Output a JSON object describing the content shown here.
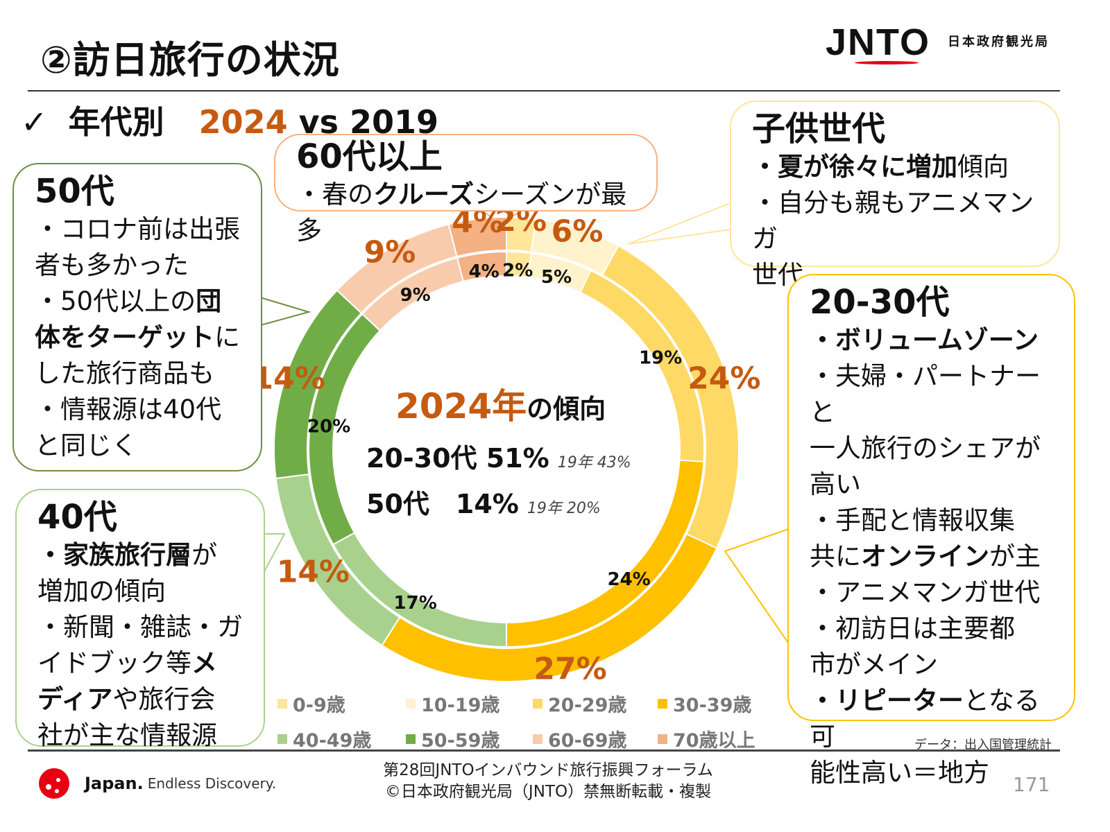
{
  "header": {
    "title": "②訪日旅行の状況",
    "logo": "JNTO",
    "logo_sub": "日本政府観光局"
  },
  "subtitle": {
    "check": "✓",
    "label": "年代別",
    "year_new": "2024",
    "vs": "vs 2019"
  },
  "callouts": {
    "c50": {
      "title": "50代",
      "lines": [
        [
          {
            "t": "・コロナ前は出張"
          }
        ],
        [
          {
            "t": "者も多かった"
          }
        ],
        [
          {
            "t": "・50代以上の"
          },
          {
            "t": "団",
            "b": true
          }
        ],
        [
          {
            "t": "体をターゲット",
            "b": true
          },
          {
            "t": "に"
          }
        ],
        [
          {
            "t": "した旅行商品も"
          }
        ],
        [
          {
            "t": "・情報源は40代"
          }
        ],
        [
          {
            "t": "と同じく"
          }
        ]
      ]
    },
    "c40": {
      "title": "40代",
      "lines": [
        [
          {
            "t": "・家族旅行層",
            "b": true
          },
          {
            "t": "が"
          }
        ],
        [
          {
            "t": "増加の傾向"
          }
        ],
        [
          {
            "t": "・新聞・雑誌・ガ"
          }
        ],
        [
          {
            "t": "イドブック等"
          },
          {
            "t": "メ",
            "b": true
          }
        ],
        [
          {
            "t": "ディア",
            "b": true
          },
          {
            "t": "や旅行会"
          }
        ],
        [
          {
            "t": "社が主な情報源"
          }
        ]
      ]
    },
    "c60": {
      "title": "60代以上",
      "lines": [
        [
          {
            "t": "・春の"
          },
          {
            "t": "クルーズ",
            "b": true
          },
          {
            "t": "シーズンが最多"
          }
        ]
      ]
    },
    "kids": {
      "title": "子供世代",
      "lines": [
        [
          {
            "t": "・夏が徐々に増加",
            "b": true
          },
          {
            "t": "傾向"
          }
        ],
        [
          {
            "t": "・自分も親もアニメマンガ"
          }
        ],
        [
          {
            "t": "世代"
          }
        ]
      ]
    },
    "c2030": {
      "title": "20-30代",
      "lines": [
        [
          {
            "t": "・ボリュームゾーン",
            "b": true
          }
        ],
        [
          {
            "t": "・夫婦・パートナーと"
          }
        ],
        [
          {
            "t": "一人旅行のシェアが"
          }
        ],
        [
          {
            "t": "高い"
          }
        ],
        [
          {
            "t": "・手配と情報収集"
          }
        ],
        [
          {
            "t": "共に"
          },
          {
            "t": "オンライン",
            "b": true
          },
          {
            "t": "が主"
          }
        ],
        [
          {
            "t": "・アニメマンガ世代"
          }
        ],
        [
          {
            "t": "・初訪日は主要都"
          }
        ],
        [
          {
            "t": "市がメイン"
          }
        ],
        [
          {
            "t": "・リピーター",
            "b": true
          },
          {
            "t": "となる可"
          }
        ],
        [
          {
            "t": "能性高い＝地方"
          }
        ]
      ]
    }
  },
  "center": {
    "title_year": "2024年",
    "title_rest": "の傾向",
    "line1": "20-30代 51%",
    "line1_note": "19年 43%",
    "line2": "50代　14%",
    "line2_note": "19年 20%"
  },
  "chart_data": {
    "type": "pie",
    "subtype": "double donut",
    "categories": [
      "0-9歳",
      "10-19歳",
      "20-29歳",
      "30-39歳",
      "40-49歳",
      "50-59歳",
      "60-69歳",
      "70歳以上"
    ],
    "colors": [
      "#ffe699",
      "#fff2cc",
      "#ffd966",
      "#ffc000",
      "#a9d18e",
      "#70ad47",
      "#f8cbad",
      "#f4b183"
    ],
    "series": [
      {
        "name": "2024",
        "ring": "outer",
        "values": [
          2,
          6,
          24,
          27,
          14,
          14,
          9,
          4
        ],
        "labels": [
          "2%",
          "6%",
          "24%",
          "27%",
          "14%",
          "14%",
          "9%",
          "4%"
        ]
      },
      {
        "name": "2019",
        "ring": "inner",
        "values": [
          2,
          5,
          19,
          24,
          17,
          20,
          9,
          4
        ],
        "labels": [
          "2%",
          "5%",
          "19%",
          "24%",
          "17%",
          "20%",
          "9%",
          "4%"
        ]
      }
    ],
    "legend_position": "bottom"
  },
  "footer": {
    "source": "データ：出入国管理統計",
    "line1": "第28回JNTOインバウンド旅行振興フォーラム",
    "line2": "©日本政府観光局（JNTO）禁無断転載・複製",
    "page": "171",
    "brand": "Japan.",
    "tagline": "Endless Discovery."
  }
}
